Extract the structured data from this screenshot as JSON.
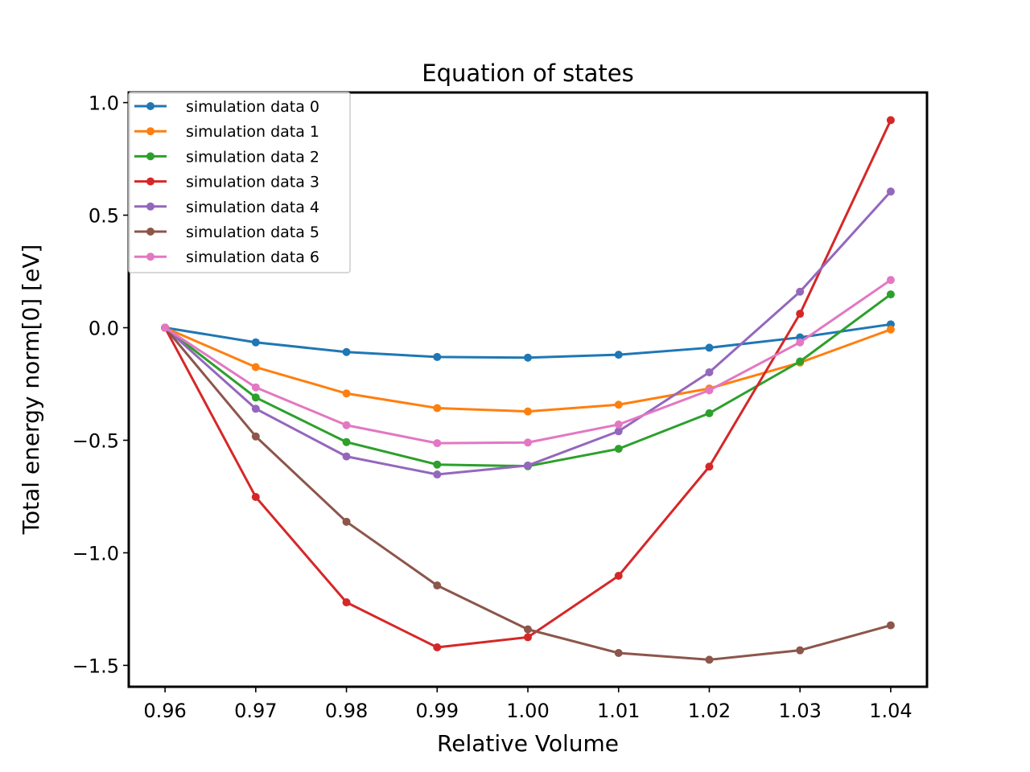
{
  "chart_data": {
    "type": "line",
    "title": "Equation of states",
    "xlabel": "Relative Volume",
    "ylabel": "Total energy norm[0] [eV]",
    "x": [
      0.96,
      0.97,
      0.98,
      0.99,
      1.0,
      1.01,
      1.02,
      1.03,
      1.04
    ],
    "xlim": [
      0.956,
      1.044
    ],
    "ylim": [
      -1.595,
      1.045
    ],
    "xticks": [
      0.96,
      0.97,
      0.98,
      0.99,
      1.0,
      1.01,
      1.02,
      1.03,
      1.04
    ],
    "xtick_labels": [
      "0.96",
      "0.97",
      "0.98",
      "0.99",
      "1.00",
      "1.01",
      "1.02",
      "1.03",
      "1.04"
    ],
    "yticks": [
      1.0,
      0.5,
      0.0,
      -0.5,
      -1.0,
      -1.5
    ],
    "ytick_labels": [
      "1.0",
      "0.5",
      "0.0",
      "−0.5",
      "−1.0",
      "−1.5"
    ],
    "grid": false,
    "legend": "top-left",
    "series": [
      {
        "name": "simulation data 0",
        "color": "#1f77b4",
        "values": [
          0.0,
          -0.065,
          -0.108,
          -0.13,
          -0.133,
          -0.12,
          -0.089,
          -0.043,
          0.015
        ]
      },
      {
        "name": "simulation data 1",
        "color": "#ff7f0e",
        "values": [
          0.0,
          -0.175,
          -0.292,
          -0.357,
          -0.372,
          -0.342,
          -0.27,
          -0.155,
          -0.008
        ]
      },
      {
        "name": "simulation data 2",
        "color": "#2ca02c",
        "values": [
          0.0,
          -0.31,
          -0.508,
          -0.608,
          -0.615,
          -0.538,
          -0.38,
          -0.15,
          0.148
        ]
      },
      {
        "name": "simulation data 3",
        "color": "#d62728",
        "values": [
          0.0,
          -0.752,
          -1.22,
          -1.42,
          -1.375,
          -1.102,
          -0.617,
          0.062,
          0.922
        ]
      },
      {
        "name": "simulation data 4",
        "color": "#9467bd",
        "values": [
          0.0,
          -0.36,
          -0.572,
          -0.652,
          -0.612,
          -0.46,
          -0.198,
          0.16,
          0.605
        ]
      },
      {
        "name": "simulation data 5",
        "color": "#8c564b",
        "values": [
          0.0,
          -0.483,
          -0.862,
          -1.145,
          -1.34,
          -1.445,
          -1.475,
          -1.433,
          -1.322
        ]
      },
      {
        "name": "simulation data 6",
        "color": "#e377c2",
        "values": [
          0.0,
          -0.265,
          -0.433,
          -0.513,
          -0.51,
          -0.43,
          -0.278,
          -0.065,
          0.212
        ]
      }
    ]
  }
}
